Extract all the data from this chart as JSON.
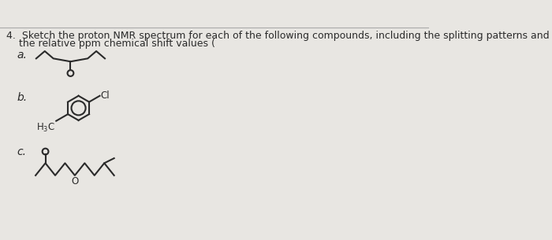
{
  "background_color": "#e8e6e2",
  "title_line1": "4.  Sketch the proton NMR spectrum for each of the following compounds, including the splitting patterns and",
  "title_line2": "    the relative ppm chemical shift values (",
  "title_fontsize": 9.0,
  "label_a": "a.",
  "label_b": "b.",
  "label_c": "c.",
  "label_fontsize": 10,
  "line_color": "#2a2a2a",
  "text_color": "#2a2a2a",
  "top_line_color": "#aaaaaa"
}
